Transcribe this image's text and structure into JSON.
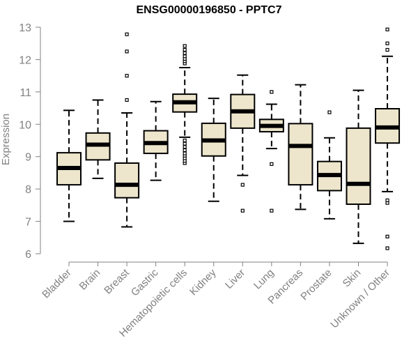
{
  "chart_data": {
    "type": "boxplot",
    "title": "ENSG00000196850 - PPTC7",
    "xlabel": "",
    "ylabel": "Expression",
    "ylim": [
      6,
      13
    ],
    "yticks": [
      6,
      7,
      8,
      9,
      10,
      11,
      12,
      13
    ],
    "categories": [
      "Bladder",
      "Brain",
      "Breast",
      "Gastric",
      "Hematopoietic cells",
      "Kidney",
      "Liver",
      "Lung",
      "Pancreas",
      "Prostate",
      "Skin",
      "Unknown / Other"
    ],
    "boxes": [
      {
        "name": "Bladder",
        "whisker_low": 7.0,
        "q1": 8.13,
        "median": 8.65,
        "q3": 9.12,
        "whisker_high": 10.43,
        "outliers": []
      },
      {
        "name": "Brain",
        "whisker_low": 8.33,
        "q1": 8.9,
        "median": 9.37,
        "q3": 9.73,
        "whisker_high": 10.75,
        "outliers": []
      },
      {
        "name": "Breast",
        "whisker_low": 6.83,
        "q1": 7.73,
        "median": 8.13,
        "q3": 8.8,
        "whisker_high": 10.35,
        "outliers": [
          10.75,
          11.5,
          12.25,
          12.78
        ]
      },
      {
        "name": "Gastric",
        "whisker_low": 8.27,
        "q1": 9.1,
        "median": 9.42,
        "q3": 9.8,
        "whisker_high": 10.7,
        "outliers": []
      },
      {
        "name": "Hematopoietic cells",
        "whisker_low": 9.6,
        "q1": 10.38,
        "median": 10.68,
        "q3": 10.93,
        "whisker_high": 11.75,
        "outliers": [
          8.8,
          8.87,
          8.95,
          9.03,
          9.1,
          9.2,
          9.3,
          9.4,
          9.5,
          11.88,
          11.95,
          12.02,
          12.1,
          12.2,
          12.3,
          12.42
        ]
      },
      {
        "name": "Kidney",
        "whisker_low": 7.62,
        "q1": 9.02,
        "median": 9.5,
        "q3": 10.03,
        "whisker_high": 10.8,
        "outliers": []
      },
      {
        "name": "Liver",
        "whisker_low": 8.42,
        "q1": 9.88,
        "median": 10.4,
        "q3": 10.92,
        "whisker_high": 11.52,
        "outliers": [
          7.33,
          8.13
        ]
      },
      {
        "name": "Lung",
        "whisker_low": 9.25,
        "q1": 9.77,
        "median": 9.95,
        "q3": 10.15,
        "whisker_high": 10.62,
        "outliers": [
          7.33,
          8.77,
          11.0
        ]
      },
      {
        "name": "Pancreas",
        "whisker_low": 7.37,
        "q1": 8.13,
        "median": 9.33,
        "q3": 10.02,
        "whisker_high": 11.22,
        "outliers": []
      },
      {
        "name": "Prostate",
        "whisker_low": 7.08,
        "q1": 7.95,
        "median": 8.43,
        "q3": 8.85,
        "whisker_high": 9.58,
        "outliers": [
          10.37
        ]
      },
      {
        "name": "Skin",
        "whisker_low": 6.32,
        "q1": 7.53,
        "median": 8.16,
        "q3": 9.88,
        "whisker_high": 11.05,
        "outliers": []
      },
      {
        "name": "Unknown / Other",
        "whisker_low": 7.92,
        "q1": 9.42,
        "median": 9.9,
        "q3": 10.48,
        "whisker_high": 12.1,
        "outliers": [
          6.17,
          6.53,
          7.57,
          7.65,
          12.3,
          12.5,
          12.93
        ]
      }
    ],
    "colors": {
      "box_fill": "#ede6cc",
      "box_stroke": "#000000",
      "median": "#000000",
      "axis": "#808080",
      "tick_label": "#808080"
    }
  }
}
